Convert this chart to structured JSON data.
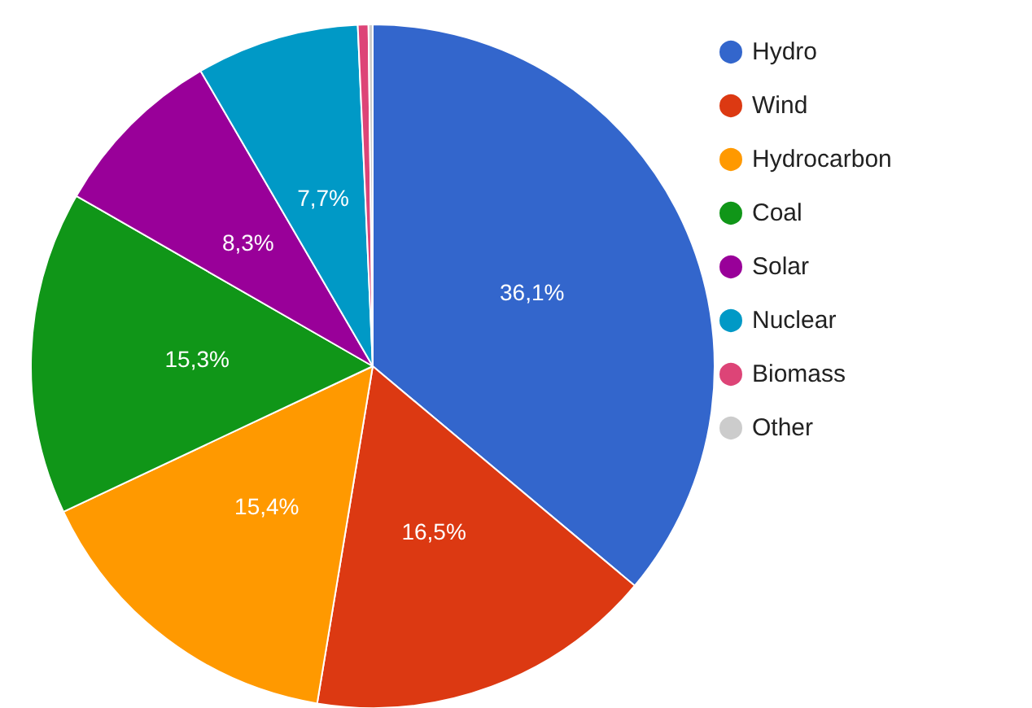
{
  "chart_data": {
    "type": "pie",
    "categories": [
      "Hydro",
      "Wind",
      "Hydrocarbon",
      "Coal",
      "Solar",
      "Nuclear",
      "Biomass",
      "Other"
    ],
    "values": [
      36.1,
      16.5,
      15.4,
      15.3,
      8.3,
      7.7,
      0.5,
      0.2
    ],
    "value_labels": [
      "36,1%",
      "16,5%",
      "15,4%",
      "15,3%",
      "8,3%",
      "7,7%",
      null,
      null
    ],
    "colors": [
      "#3366cc",
      "#dc3912",
      "#ff9900",
      "#109618",
      "#990099",
      "#0099c6",
      "#dd4477",
      "#cccccc"
    ],
    "legend": "right"
  }
}
